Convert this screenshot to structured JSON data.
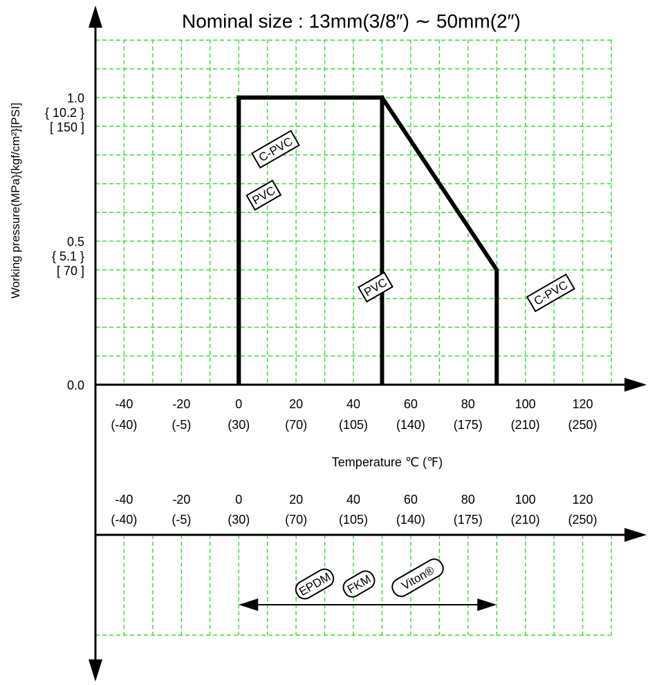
{
  "title": "Nominal size : 13mm(3/8″) ∼ 50mm(2″)",
  "colors": {
    "grid": "#33dd33",
    "curve": "#000000",
    "axis": "#000000"
  },
  "chart_data": [
    {
      "type": "line",
      "title": "Nominal size : 13mm(3/8″) ∼ 50mm(2″)",
      "xlabel": "Temperature ℃ (℉)",
      "ylabel": "Working pressure(MPa){kgf/cm²}[PSI]",
      "xlim": [
        -50,
        130
      ],
      "ylim": [
        0,
        1.2
      ],
      "grid": true,
      "x_ticks": [
        {
          "c": -40,
          "f": "(-40)"
        },
        {
          "c": -20,
          "f": "(-5)"
        },
        {
          "c": 0,
          "f": "(30)"
        },
        {
          "c": 20,
          "f": "(70)"
        },
        {
          "c": 40,
          "f": "(105)"
        },
        {
          "c": 60,
          "f": "(140)"
        },
        {
          "c": 80,
          "f": "(175)"
        },
        {
          "c": 100,
          "f": "(210)"
        },
        {
          "c": 120,
          "f": "(250)"
        }
      ],
      "y_ticks": [
        {
          "v": 0.0,
          "lines": [
            "0.0"
          ]
        },
        {
          "v": 0.5,
          "lines": [
            "0.5",
            "{ 5.1 }",
            "[ 70 ]"
          ]
        },
        {
          "v": 1.0,
          "lines": [
            "1.0",
            "{ 10.2 }",
            "[ 150 ]"
          ]
        }
      ],
      "series": [
        {
          "x": [
            0,
            0,
            50,
            50
          ],
          "y": [
            0,
            1.0,
            1.0,
            0
          ],
          "label": "PVC"
        },
        {
          "x": [
            0,
            0,
            50,
            90,
            90
          ],
          "y": [
            0,
            1.0,
            1.0,
            0.4,
            0
          ],
          "label": "C-PVC"
        }
      ],
      "labels": [
        {
          "text": "C-PVC",
          "x": 5,
          "y": 0.82
        },
        {
          "text": "PVC",
          "x": 4,
          "y": 0.66
        },
        {
          "text": "PVC",
          "x": 43,
          "y": 0.34
        },
        {
          "text": "C-PVC",
          "x": 101,
          "y": 0.32
        }
      ]
    },
    {
      "type": "range",
      "x_ticks": [
        {
          "c": -40,
          "f": "(-40)"
        },
        {
          "c": -20,
          "f": "(-5)"
        },
        {
          "c": 0,
          "f": "(30)"
        },
        {
          "c": 20,
          "f": "(70)"
        },
        {
          "c": 40,
          "f": "(105)"
        },
        {
          "c": 60,
          "f": "(140)"
        },
        {
          "c": 80,
          "f": "(175)"
        },
        {
          "c": 100,
          "f": "(210)"
        },
        {
          "c": 120,
          "f": "(250)"
        }
      ],
      "range": {
        "from": 0,
        "to": 90
      },
      "materials": [
        "EPDM",
        "FKM",
        "Viton®"
      ]
    }
  ]
}
